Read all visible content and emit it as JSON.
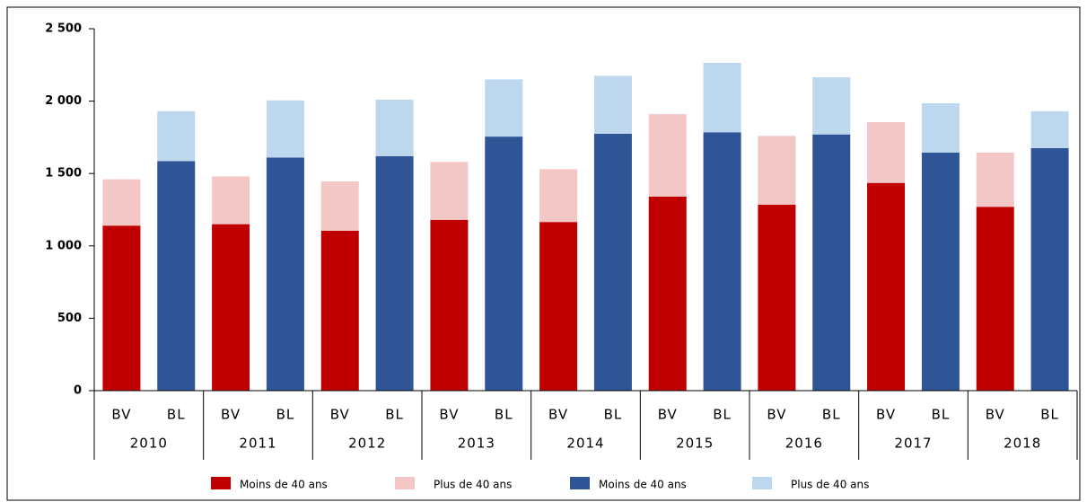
{
  "chart_data": {
    "type": "stacked-bar",
    "categories": [
      "BV",
      "BL",
      "BV",
      "BL",
      "BV",
      "BL",
      "BV",
      "BL",
      "BV",
      "BL",
      "BV",
      "BL",
      "BV",
      "BL",
      "BV",
      "BL",
      "BV",
      "BL"
    ],
    "groups": [
      "2010",
      "2011",
      "2012",
      "2013",
      "2014",
      "2015",
      "2016",
      "2017",
      "2018"
    ],
    "series": [
      {
        "name": "Moins de 40 ans",
        "color": "#c00000",
        "values": [
          1140,
          null,
          1150,
          null,
          1105,
          null,
          1180,
          null,
          1165,
          null,
          1340,
          null,
          1285,
          null,
          1435,
          null,
          1270,
          null
        ]
      },
      {
        "name": "Plus de 40 ans",
        "color": "#f4c7c7",
        "values": [
          320,
          null,
          330,
          null,
          340,
          null,
          400,
          null,
          365,
          null,
          570,
          null,
          475,
          null,
          420,
          null,
          375,
          null
        ]
      },
      {
        "name": "Moins de 40 ans",
        "color": "#2f5597",
        "values": [
          null,
          1585,
          null,
          1610,
          null,
          1620,
          null,
          1755,
          null,
          1775,
          null,
          1785,
          null,
          1770,
          null,
          1645,
          null,
          1675
        ]
      },
      {
        "name": "Plus de 40 ans",
        "color": "#bdd7ee",
        "values": [
          null,
          345,
          null,
          395,
          null,
          390,
          null,
          395,
          null,
          400,
          null,
          480,
          null,
          395,
          null,
          340,
          null,
          255
        ]
      }
    ],
    "ylim": [
      0,
      2500
    ],
    "yticks": [
      0,
      500,
      {
        "value": 1000,
        "label": "1 000"
      },
      {
        "value": 1500,
        "label": "1 500"
      },
      {
        "value": 2000,
        "label": "2 000"
      },
      {
        "value": 2500,
        "label": "2 500"
      }
    ],
    "grid": false
  }
}
